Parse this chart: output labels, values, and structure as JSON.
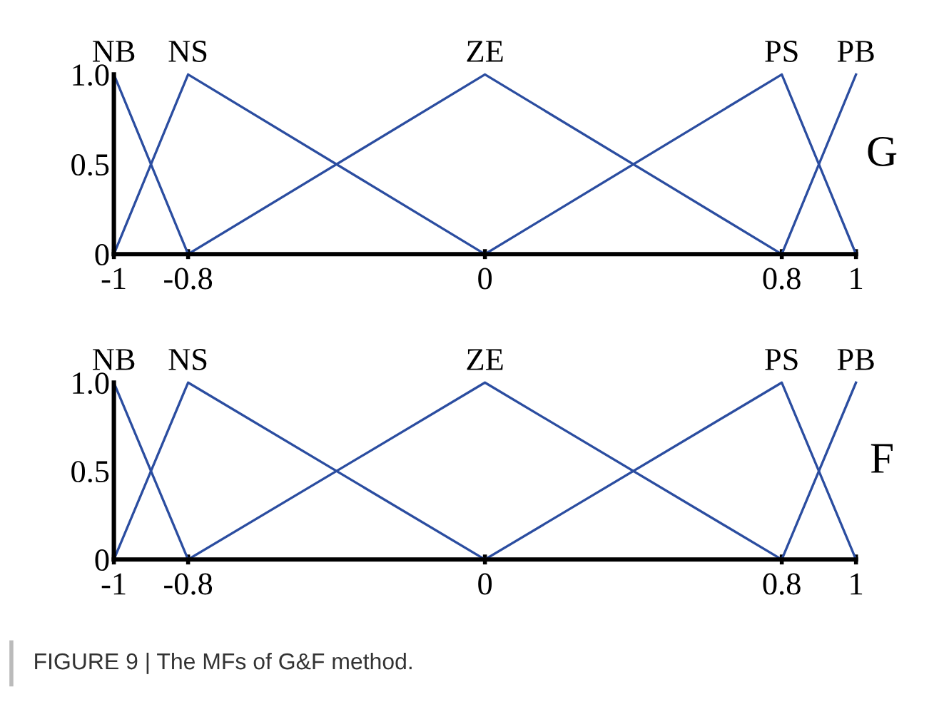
{
  "chart_data": [
    {
      "type": "line",
      "xlim": [
        -1,
        1
      ],
      "ylim": [
        0,
        1
      ],
      "xticks": [
        -1,
        -0.8,
        0,
        0.8,
        1
      ],
      "yticks": [
        0,
        0.5,
        {
          "value": 1,
          "label": "1.0"
        }
      ],
      "grid": false,
      "legend": false,
      "marker": "none",
      "line_style": "solid",
      "annotations": [
        "G"
      ],
      "series": [
        {
          "name": "NB",
          "color": "#2b4da0",
          "x": [
            -1,
            -0.8
          ],
          "values": [
            1,
            0
          ]
        },
        {
          "name": "NS",
          "color": "#2b4da0",
          "x": [
            -1,
            -0.8,
            0
          ],
          "values": [
            0,
            1,
            0
          ]
        },
        {
          "name": "ZE",
          "color": "#2b4da0",
          "x": [
            -0.8,
            0,
            0.8
          ],
          "values": [
            0,
            1,
            0
          ]
        },
        {
          "name": "PS",
          "color": "#2b4da0",
          "x": [
            0,
            0.8,
            1
          ],
          "values": [
            0,
            1,
            0
          ]
        },
        {
          "name": "PB",
          "color": "#2b4da0",
          "x": [
            0.8,
            1
          ],
          "values": [
            0,
            1
          ]
        }
      ]
    },
    {
      "type": "line",
      "xlim": [
        -1,
        1
      ],
      "ylim": [
        0,
        1
      ],
      "xticks": [
        -1,
        -0.8,
        0,
        0.8,
        1
      ],
      "yticks": [
        0,
        0.5,
        {
          "value": 1,
          "label": "1.0"
        }
      ],
      "grid": false,
      "legend": false,
      "marker": "none",
      "line_style": "solid",
      "annotations": [
        "F",
        "FIGURE 9 | The MFs of G&F method."
      ],
      "series": [
        {
          "name": "NB",
          "color": "#2b4da0",
          "x": [
            -1,
            -0.8
          ],
          "values": [
            1,
            0
          ]
        },
        {
          "name": "NS",
          "color": "#2b4da0",
          "x": [
            -1,
            -0.8,
            0
          ],
          "values": [
            0,
            1,
            0
          ]
        },
        {
          "name": "ZE",
          "color": "#2b4da0",
          "x": [
            -0.8,
            0,
            0.8
          ],
          "values": [
            0,
            1,
            0
          ]
        },
        {
          "name": "PS",
          "color": "#2b4da0",
          "x": [
            0,
            0.8,
            1
          ],
          "values": [
            0,
            1,
            0
          ]
        },
        {
          "name": "PB",
          "color": "#2b4da0",
          "x": [
            0.8,
            1
          ],
          "values": [
            0,
            1
          ]
        }
      ]
    }
  ]
}
